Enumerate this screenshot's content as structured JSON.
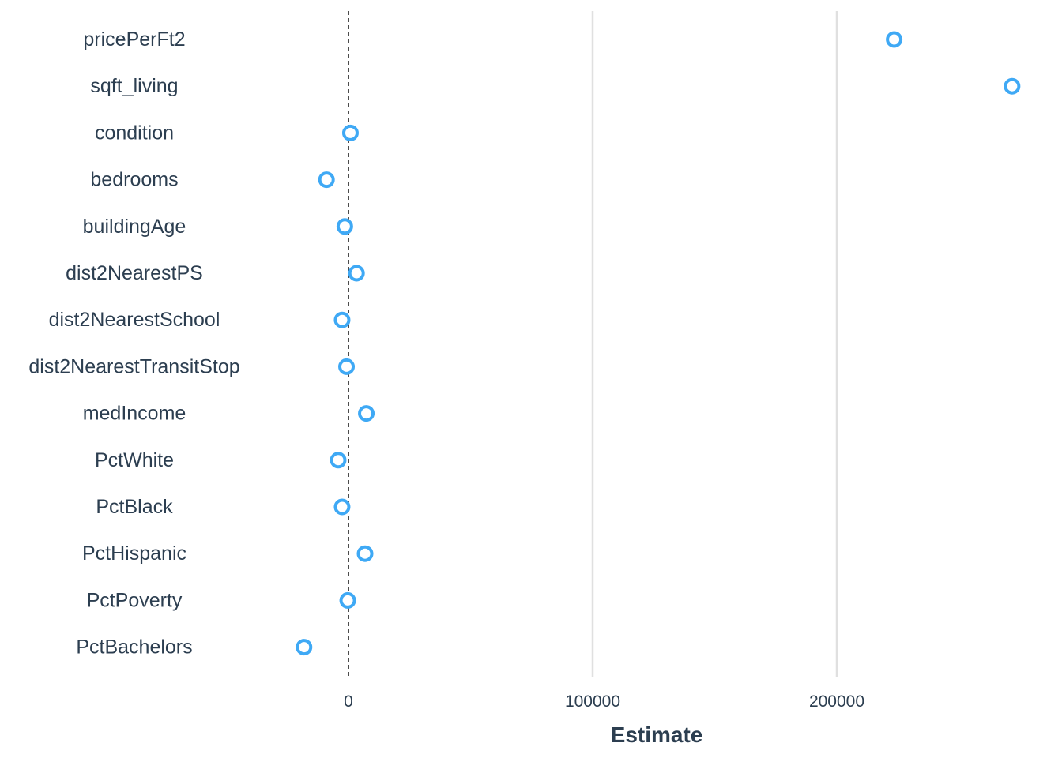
{
  "chart_data": {
    "type": "scatter",
    "title": "",
    "xlabel": "Estimate",
    "ylabel": "",
    "xlim": [
      -71000,
      275000
    ],
    "xticks": [
      0,
      100000,
      200000
    ],
    "xtick_labels": [
      "0",
      "100000",
      "200000"
    ],
    "reference_line": {
      "x": 0,
      "style": "dashed"
    },
    "grid": "vertical major lines only",
    "legend": "none",
    "marker": "open circle",
    "colors": {
      "point": "#3fa9f5",
      "text": "#2c3e50",
      "grid": "#e0e0e0",
      "reference": "#000000"
    },
    "categories": [
      "pricePerFt2",
      "sqft_living",
      "condition",
      "bedrooms",
      "buildingAge",
      "dist2NearestPS",
      "dist2NearestSchool",
      "dist2NearestTransitStop",
      "medIncome",
      "PctWhite",
      "PctBlack",
      "PctHispanic",
      "PctPoverty",
      "PctBachelors"
    ],
    "values": [
      223500,
      271800,
      800,
      -9000,
      -1500,
      3300,
      -2600,
      -800,
      7300,
      -4200,
      -2600,
      6800,
      -300,
      -18200
    ]
  }
}
